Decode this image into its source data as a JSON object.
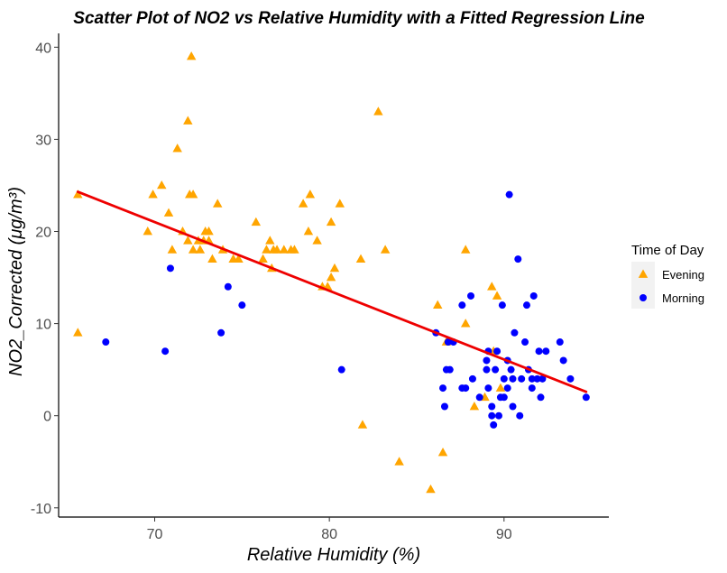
{
  "chart_data": {
    "type": "scatter",
    "title": "Scatter Plot of NO2 vs Relative Humidity with a Fitted Regression Line",
    "xlabel": "Relative Humidity (%)",
    "ylabel": "NO2_Corrected (μg/m³)",
    "xlim": [
      64.5,
      96.0
    ],
    "ylim": [
      -11.0,
      41.5
    ],
    "x_ticks": [
      70,
      80,
      90
    ],
    "y_ticks": [
      -10,
      0,
      10,
      20,
      30,
      40
    ],
    "grid": false,
    "legend": {
      "title": "Time of Day",
      "placement": "right"
    },
    "colors": {
      "Evening": "#FFA500",
      "Morning": "#0000FF",
      "regression": "#EE0000"
    },
    "series": [
      {
        "name": "Evening",
        "marker": "triangle",
        "points": [
          [
            65.6,
            24
          ],
          [
            65.6,
            9
          ],
          [
            69.6,
            20
          ],
          [
            69.9,
            24
          ],
          [
            70.4,
            25
          ],
          [
            70.8,
            22
          ],
          [
            71.0,
            18
          ],
          [
            71.3,
            29
          ],
          [
            71.6,
            20
          ],
          [
            71.9,
            32
          ],
          [
            71.9,
            19
          ],
          [
            72.0,
            24
          ],
          [
            72.1,
            39
          ],
          [
            72.2,
            24
          ],
          [
            72.2,
            18
          ],
          [
            72.5,
            19
          ],
          [
            72.6,
            18
          ],
          [
            72.8,
            19
          ],
          [
            72.9,
            20
          ],
          [
            73.1,
            20
          ],
          [
            73.1,
            19
          ],
          [
            73.3,
            17
          ],
          [
            73.6,
            23
          ],
          [
            73.9,
            18
          ],
          [
            74.5,
            17
          ],
          [
            74.8,
            17
          ],
          [
            75.8,
            21
          ],
          [
            76.2,
            17
          ],
          [
            76.4,
            18
          ],
          [
            76.6,
            19
          ],
          [
            76.7,
            16
          ],
          [
            76.8,
            18
          ],
          [
            77.0,
            18
          ],
          [
            77.4,
            18
          ],
          [
            77.8,
            18
          ],
          [
            78.0,
            18
          ],
          [
            78.5,
            23
          ],
          [
            78.8,
            20
          ],
          [
            78.9,
            24
          ],
          [
            79.3,
            19
          ],
          [
            79.6,
            14
          ],
          [
            79.9,
            14
          ],
          [
            80.1,
            21
          ],
          [
            80.1,
            15
          ],
          [
            80.3,
            16
          ],
          [
            80.6,
            23
          ],
          [
            81.8,
            17
          ],
          [
            81.9,
            -1
          ],
          [
            82.8,
            33
          ],
          [
            83.2,
            18
          ],
          [
            84.0,
            -5
          ],
          [
            85.8,
            -8
          ],
          [
            86.2,
            12
          ],
          [
            86.5,
            -4
          ],
          [
            86.7,
            8
          ],
          [
            87.8,
            18
          ],
          [
            87.8,
            10
          ],
          [
            88.3,
            1
          ],
          [
            88.9,
            2
          ],
          [
            89.3,
            14
          ],
          [
            89.4,
            7
          ],
          [
            89.6,
            13
          ],
          [
            89.8,
            3
          ]
        ]
      },
      {
        "name": "Morning",
        "marker": "circle",
        "points": [
          [
            67.2,
            8
          ],
          [
            70.6,
            7
          ],
          [
            70.9,
            16
          ],
          [
            74.2,
            14
          ],
          [
            75.0,
            12
          ],
          [
            73.8,
            9
          ],
          [
            80.7,
            5
          ],
          [
            86.1,
            9
          ],
          [
            86.5,
            3
          ],
          [
            86.6,
            1
          ],
          [
            86.7,
            5
          ],
          [
            86.8,
            8
          ],
          [
            86.9,
            5
          ],
          [
            87.1,
            8
          ],
          [
            87.6,
            3
          ],
          [
            87.6,
            12
          ],
          [
            87.8,
            3
          ],
          [
            88.1,
            13
          ],
          [
            88.2,
            4
          ],
          [
            88.6,
            2
          ],
          [
            89.0,
            5
          ],
          [
            89.0,
            6
          ],
          [
            89.1,
            7
          ],
          [
            89.1,
            3
          ],
          [
            89.3,
            1
          ],
          [
            89.3,
            0
          ],
          [
            89.4,
            -1
          ],
          [
            89.5,
            5
          ],
          [
            89.6,
            7
          ],
          [
            89.7,
            0
          ],
          [
            89.8,
            2
          ],
          [
            89.9,
            12
          ],
          [
            90.0,
            4
          ],
          [
            90.0,
            2
          ],
          [
            90.2,
            3
          ],
          [
            90.2,
            6
          ],
          [
            90.3,
            24
          ],
          [
            90.5,
            4
          ],
          [
            90.5,
            1
          ],
          [
            90.4,
            5
          ],
          [
            90.6,
            9
          ],
          [
            90.8,
            17
          ],
          [
            90.9,
            0
          ],
          [
            91.0,
            4
          ],
          [
            91.2,
            8
          ],
          [
            91.3,
            12
          ],
          [
            91.4,
            5
          ],
          [
            91.6,
            3
          ],
          [
            91.6,
            4
          ],
          [
            91.7,
            13
          ],
          [
            91.9,
            4
          ],
          [
            92.0,
            7
          ],
          [
            92.1,
            2
          ],
          [
            92.2,
            4
          ],
          [
            92.4,
            7
          ],
          [
            93.2,
            8
          ],
          [
            93.4,
            6
          ],
          [
            93.8,
            4
          ],
          [
            94.7,
            2
          ]
        ]
      }
    ],
    "regression_line": {
      "x": [
        65.6,
        94.7
      ],
      "y": [
        24.3,
        2.6
      ]
    }
  }
}
